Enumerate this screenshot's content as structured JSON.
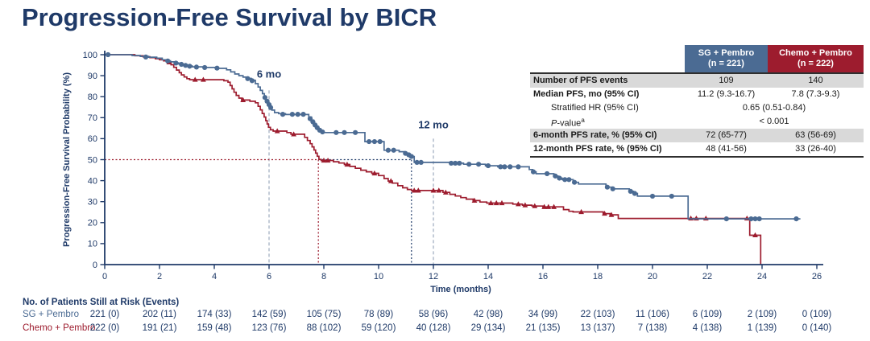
{
  "page": {
    "title": "Progression-Free Survival by BICR"
  },
  "colors": {
    "navy": "#1f3a68",
    "sg_blue": "#4b6b93",
    "chemo_red": "#9d1c2e",
    "milestone_gray": "#8a99b0",
    "shaded_row": "#d9d9d9"
  },
  "stats_table": {
    "columns": [
      {
        "name": "SG + Pembro",
        "n": "(n = 221)",
        "color": "#4b6b93"
      },
      {
        "name": "Chemo + Pembro",
        "n": "(n = 222)",
        "color": "#9d1c2e"
      }
    ],
    "rows": {
      "events": {
        "label": "Number of PFS events",
        "sg": "109",
        "chemo": "140"
      },
      "median": {
        "label": "Median PFS, mo (95% CI)",
        "sg": "11.2 (9.3-16.7)",
        "chemo": "7.8 (7.3-9.3)"
      },
      "hr": {
        "label": "Stratified HR (95% CI)",
        "value": "0.65 (0.51-0.84)"
      },
      "pvalue": {
        "label_p": "P",
        "label_rest": "-value",
        "sup": "a",
        "value": "< 0.001"
      },
      "rate6": {
        "label": "6-month PFS rate, % (95% CI)",
        "sg": "72 (65-77)",
        "chemo": "63 (56-69)"
      },
      "rate12": {
        "label": "12-month PFS rate, % (95% CI)",
        "sg": "48 (41-56)",
        "chemo": "33 (26-40)"
      }
    }
  },
  "risk_table": {
    "title": "No. of Patients Still at Risk (Events)",
    "months": [
      0,
      2,
      4,
      6,
      8,
      10,
      12,
      14,
      16,
      18,
      20,
      22,
      24,
      26
    ],
    "rows": [
      {
        "label": "SG + Pembro",
        "label_color": "#4b6b93",
        "values": [
          "221 (0)",
          "202 (11)",
          "174 (33)",
          "142 (59)",
          "105 (75)",
          "78 (89)",
          "58 (96)",
          "42 (98)",
          "34 (99)",
          "22 (103)",
          "11 (106)",
          "6 (109)",
          "2 (109)",
          "0 (109)"
        ]
      },
      {
        "label": "Chemo + Pembro",
        "label_color": "#9d1c2e",
        "values": [
          "222 (0)",
          "191 (21)",
          "159 (48)",
          "123 (76)",
          "88 (102)",
          "59 (120)",
          "40 (128)",
          "29 (134)",
          "21 (135)",
          "13 (137)",
          "7 (138)",
          "4 (138)",
          "1 (139)",
          "0 (140)"
        ]
      }
    ]
  },
  "chart_data": {
    "type": "line",
    "subtype": "kaplan-meier-step",
    "xlabel": "Time (months)",
    "ylabel": "Progression-Free Survival Probability (%)",
    "xlim": [
      0,
      26
    ],
    "ylim": [
      0,
      100
    ],
    "xticks": [
      0,
      2,
      4,
      6,
      8,
      10,
      12,
      14,
      16,
      18,
      20,
      22,
      24,
      26
    ],
    "yticks": [
      0,
      10,
      20,
      30,
      40,
      50,
      60,
      70,
      80,
      90,
      100
    ],
    "grid": false,
    "milestones": [
      {
        "label": "6 mo",
        "month": 6,
        "line_top_pct": 83,
        "label_pct": 89
      },
      {
        "label": "12 mo",
        "month": 12,
        "line_top_pct": 60,
        "label_pct": 65
      }
    ],
    "median_refs": {
      "pct": 50,
      "red_month": 7.8,
      "blue_month": 11.2
    },
    "series": [
      {
        "name": "Chemo + Pembro",
        "color": "#9d1c2e",
        "marker": "triangle",
        "end_month": 23.95,
        "steps": [
          [
            0,
            100
          ],
          [
            1.1,
            99.5
          ],
          [
            1.4,
            99.0
          ],
          [
            1.65,
            98.6
          ],
          [
            1.85,
            98.1
          ],
          [
            2.0,
            97.6
          ],
          [
            2.15,
            97.1
          ],
          [
            2.3,
            96.4
          ],
          [
            2.42,
            95.2
          ],
          [
            2.52,
            94.0
          ],
          [
            2.62,
            92.7
          ],
          [
            2.72,
            91.4
          ],
          [
            2.8,
            90.4
          ],
          [
            2.9,
            89.4
          ],
          [
            3.0,
            88.6
          ],
          [
            3.1,
            88.1
          ],
          [
            4.35,
            87.6
          ],
          [
            4.5,
            86.9
          ],
          [
            4.58,
            85.3
          ],
          [
            4.65,
            83.7
          ],
          [
            4.72,
            82.1
          ],
          [
            4.8,
            80.6
          ],
          [
            4.9,
            79.3
          ],
          [
            5.0,
            78.4
          ],
          [
            5.3,
            77.8
          ],
          [
            5.5,
            77.1
          ],
          [
            5.6,
            75.4
          ],
          [
            5.68,
            73.7
          ],
          [
            5.75,
            72.0
          ],
          [
            5.82,
            70.3
          ],
          [
            5.88,
            68.6
          ],
          [
            5.93,
            67.0
          ],
          [
            5.98,
            65.4
          ],
          [
            6.05,
            64.2
          ],
          [
            6.15,
            63.6
          ],
          [
            6.65,
            62.9
          ],
          [
            6.8,
            62.1
          ],
          [
            7.3,
            60.6
          ],
          [
            7.4,
            59.1
          ],
          [
            7.5,
            57.6
          ],
          [
            7.57,
            56.1
          ],
          [
            7.64,
            54.6
          ],
          [
            7.7,
            53.1
          ],
          [
            7.76,
            51.6
          ],
          [
            7.82,
            50.1
          ],
          [
            7.9,
            49.6
          ],
          [
            8.35,
            49.0
          ],
          [
            8.55,
            48.4
          ],
          [
            8.75,
            47.7
          ],
          [
            8.95,
            46.8
          ],
          [
            9.15,
            45.9
          ],
          [
            9.35,
            45.0
          ],
          [
            9.55,
            44.2
          ],
          [
            9.75,
            43.5
          ],
          [
            10.0,
            42.4
          ],
          [
            10.2,
            41.0
          ],
          [
            10.35,
            39.8
          ],
          [
            10.5,
            38.8
          ],
          [
            10.7,
            37.6
          ],
          [
            10.88,
            36.6
          ],
          [
            11.05,
            35.8
          ],
          [
            11.2,
            35.3
          ],
          [
            12.35,
            34.4
          ],
          [
            12.6,
            33.5
          ],
          [
            12.8,
            32.7
          ],
          [
            13.0,
            31.9
          ],
          [
            13.2,
            31.2
          ],
          [
            13.45,
            30.5
          ],
          [
            13.7,
            29.8
          ],
          [
            13.95,
            29.3
          ],
          [
            14.9,
            28.8
          ],
          [
            15.25,
            28.3
          ],
          [
            15.6,
            27.9
          ],
          [
            16.0,
            27.5
          ],
          [
            16.75,
            26.2
          ],
          [
            16.95,
            25.4
          ],
          [
            17.1,
            25.1
          ],
          [
            18.2,
            24.3
          ],
          [
            18.45,
            23.7
          ],
          [
            18.75,
            22.0
          ],
          [
            23.55,
            14.0
          ],
          [
            23.95,
            0
          ]
        ],
        "censors": [
          [
            2.35,
            96.4
          ],
          [
            3.3,
            88.1
          ],
          [
            3.6,
            88.1
          ],
          [
            5.05,
            78.4
          ],
          [
            6.3,
            63.6
          ],
          [
            6.9,
            62.1
          ],
          [
            8.0,
            49.6
          ],
          [
            8.15,
            49.6
          ],
          [
            8.85,
            47.7
          ],
          [
            9.85,
            43.5
          ],
          [
            10.45,
            39.8
          ],
          [
            11.3,
            35.3
          ],
          [
            11.45,
            35.3
          ],
          [
            12.0,
            35.3
          ],
          [
            12.2,
            35.3
          ],
          [
            12.45,
            34.4
          ],
          [
            13.5,
            30.5
          ],
          [
            14.1,
            29.3
          ],
          [
            14.3,
            29.3
          ],
          [
            14.5,
            29.3
          ],
          [
            15.1,
            28.8
          ],
          [
            15.35,
            28.3
          ],
          [
            15.7,
            27.9
          ],
          [
            16.05,
            27.5
          ],
          [
            16.2,
            27.5
          ],
          [
            16.4,
            27.5
          ],
          [
            17.4,
            25.1
          ],
          [
            18.25,
            24.3
          ],
          [
            18.5,
            23.7
          ],
          [
            21.4,
            22.0
          ],
          [
            21.6,
            22.0
          ],
          [
            21.95,
            22.0
          ],
          [
            23.45,
            22.0
          ],
          [
            23.75,
            14.0
          ]
        ]
      },
      {
        "name": "SG + Pembro",
        "color": "#4b6b93",
        "marker": "circle",
        "end_month": 25.4,
        "steps": [
          [
            0,
            100
          ],
          [
            1.0,
            99.6
          ],
          [
            1.3,
            99.2
          ],
          [
            1.6,
            98.8
          ],
          [
            1.9,
            98.3
          ],
          [
            2.1,
            97.6
          ],
          [
            2.25,
            97.1
          ],
          [
            2.4,
            96.6
          ],
          [
            2.55,
            96.1
          ],
          [
            2.7,
            95.6
          ],
          [
            2.85,
            95.1
          ],
          [
            3.0,
            94.6
          ],
          [
            3.2,
            94.2
          ],
          [
            3.6,
            93.9
          ],
          [
            4.1,
            93.5
          ],
          [
            4.45,
            92.8
          ],
          [
            4.6,
            91.8
          ],
          [
            4.75,
            90.8
          ],
          [
            4.9,
            90.0
          ],
          [
            5.05,
            89.3
          ],
          [
            5.2,
            88.7
          ],
          [
            5.35,
            87.8
          ],
          [
            5.5,
            86.2
          ],
          [
            5.6,
            84.6
          ],
          [
            5.68,
            83.0
          ],
          [
            5.76,
            81.4
          ],
          [
            5.83,
            79.8
          ],
          [
            5.9,
            78.2
          ],
          [
            5.96,
            76.6
          ],
          [
            6.02,
            75.0
          ],
          [
            6.1,
            73.6
          ],
          [
            6.2,
            72.4
          ],
          [
            6.35,
            71.9
          ],
          [
            6.6,
            71.5
          ],
          [
            7.45,
            70.3
          ],
          [
            7.55,
            68.8
          ],
          [
            7.63,
            67.3
          ],
          [
            7.7,
            65.9
          ],
          [
            7.78,
            64.7
          ],
          [
            7.88,
            63.6
          ],
          [
            8.0,
            62.9
          ],
          [
            9.5,
            58.6
          ],
          [
            10.2,
            54.5
          ],
          [
            10.75,
            53.8
          ],
          [
            10.95,
            53.0
          ],
          [
            11.08,
            52.3
          ],
          [
            11.18,
            51.5
          ],
          [
            11.3,
            48.7
          ],
          [
            12.6,
            48.3
          ],
          [
            13.1,
            47.8
          ],
          [
            13.9,
            47.1
          ],
          [
            14.35,
            46.6
          ],
          [
            15.5,
            45.3
          ],
          [
            15.62,
            44.2
          ],
          [
            15.75,
            43.3
          ],
          [
            16.4,
            42.2
          ],
          [
            16.55,
            41.2
          ],
          [
            16.7,
            40.5
          ],
          [
            17.1,
            39.2
          ],
          [
            17.3,
            38.4
          ],
          [
            18.3,
            36.9
          ],
          [
            18.5,
            36.1
          ],
          [
            19.15,
            34.9
          ],
          [
            19.3,
            33.9
          ],
          [
            19.45,
            32.6
          ],
          [
            21.3,
            21.8
          ]
        ],
        "censors": [
          [
            0.12,
            100
          ],
          [
            1.5,
            98.9
          ],
          [
            2.3,
            97.0
          ],
          [
            2.6,
            96.0
          ],
          [
            2.8,
            95.4
          ],
          [
            2.95,
            94.9
          ],
          [
            3.1,
            94.5
          ],
          [
            3.35,
            94.1
          ],
          [
            3.65,
            93.9
          ],
          [
            4.1,
            93.6
          ],
          [
            5.22,
            88.6
          ],
          [
            5.38,
            87.6
          ],
          [
            5.85,
            79.6
          ],
          [
            5.93,
            77.8
          ],
          [
            6.0,
            76.2
          ],
          [
            6.06,
            74.8
          ],
          [
            6.5,
            71.6
          ],
          [
            6.85,
            71.6
          ],
          [
            7.05,
            71.6
          ],
          [
            7.25,
            71.6
          ],
          [
            7.5,
            69.5
          ],
          [
            7.6,
            68.0
          ],
          [
            7.68,
            66.5
          ],
          [
            7.76,
            65.2
          ],
          [
            7.85,
            64.0
          ],
          [
            7.95,
            63.2
          ],
          [
            8.45,
            62.9
          ],
          [
            8.75,
            62.9
          ],
          [
            9.15,
            62.9
          ],
          [
            9.65,
            58.6
          ],
          [
            9.85,
            58.6
          ],
          [
            10.05,
            58.6
          ],
          [
            10.35,
            54.5
          ],
          [
            10.55,
            54.5
          ],
          [
            10.98,
            53.0
          ],
          [
            11.1,
            52.3
          ],
          [
            11.2,
            51.5
          ],
          [
            11.4,
            48.7
          ],
          [
            11.55,
            48.7
          ],
          [
            12.65,
            48.3
          ],
          [
            12.8,
            48.3
          ],
          [
            12.95,
            48.3
          ],
          [
            13.3,
            47.8
          ],
          [
            13.65,
            47.8
          ],
          [
            14.0,
            47.1
          ],
          [
            14.45,
            46.6
          ],
          [
            14.6,
            46.6
          ],
          [
            14.8,
            46.6
          ],
          [
            15.1,
            46.6
          ],
          [
            15.65,
            44.2
          ],
          [
            16.15,
            43.3
          ],
          [
            16.45,
            42.2
          ],
          [
            16.6,
            41.2
          ],
          [
            16.8,
            40.5
          ],
          [
            16.95,
            40.5
          ],
          [
            17.15,
            39.2
          ],
          [
            18.35,
            36.9
          ],
          [
            18.55,
            36.1
          ],
          [
            19.2,
            34.9
          ],
          [
            19.35,
            33.9
          ],
          [
            20.0,
            32.6
          ],
          [
            20.7,
            32.6
          ],
          [
            22.7,
            21.8
          ],
          [
            23.6,
            21.8
          ],
          [
            23.75,
            21.8
          ],
          [
            23.9,
            21.8
          ],
          [
            25.25,
            21.8
          ]
        ]
      }
    ]
  }
}
